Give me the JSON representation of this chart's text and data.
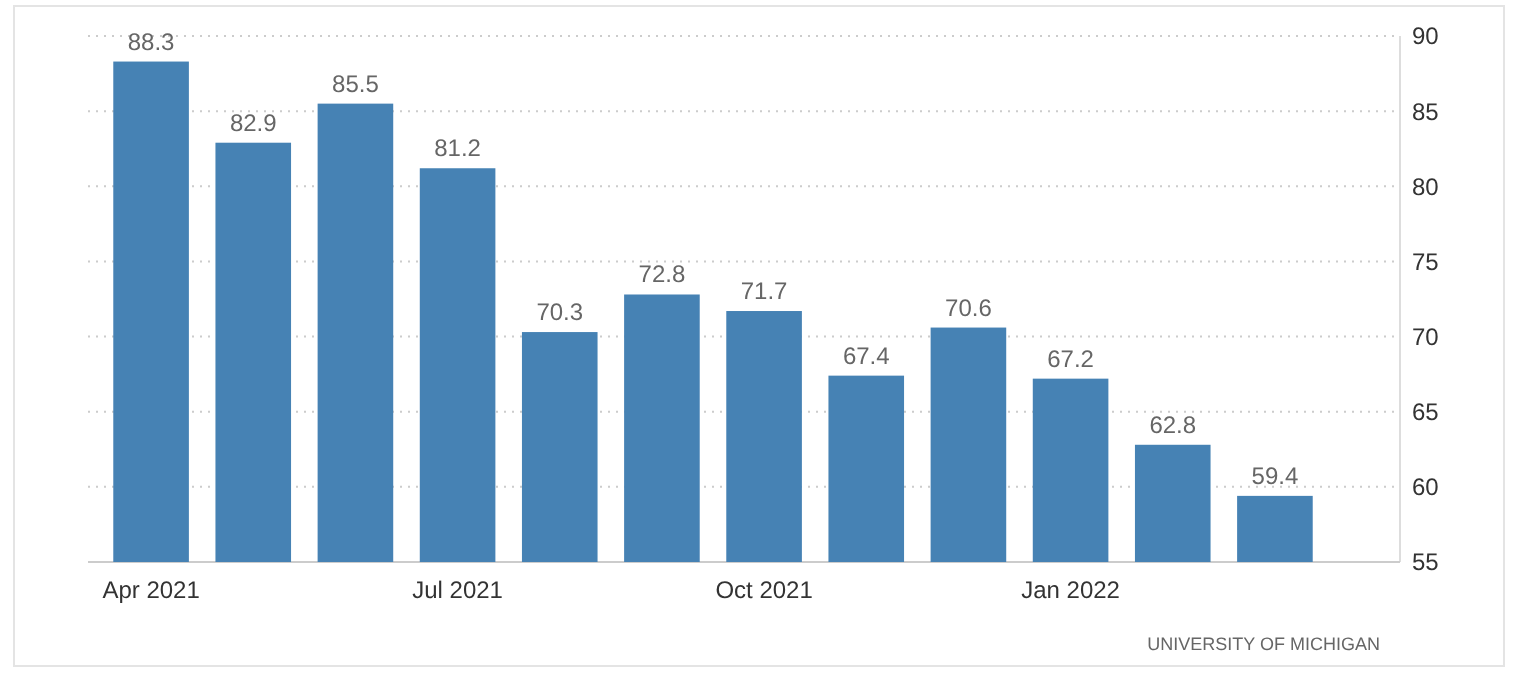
{
  "chart_data": {
    "type": "bar",
    "categories": [
      "Apr 2021",
      null,
      null,
      "Jul 2021",
      null,
      null,
      "Oct 2021",
      null,
      null,
      "Jan 2022",
      null,
      null
    ],
    "values": [
      88.3,
      82.9,
      85.5,
      81.2,
      70.3,
      72.8,
      71.7,
      67.4,
      70.6,
      67.2,
      62.8,
      59.4
    ],
    "color": "#4682b4",
    "ylim": [
      55,
      90
    ],
    "yticks": [
      55,
      60,
      65,
      70,
      75,
      80,
      85,
      90
    ],
    "grid": "y",
    "data_labels": true,
    "annotations": [
      "UNIVERSITY OF MICHIGAN"
    ]
  }
}
